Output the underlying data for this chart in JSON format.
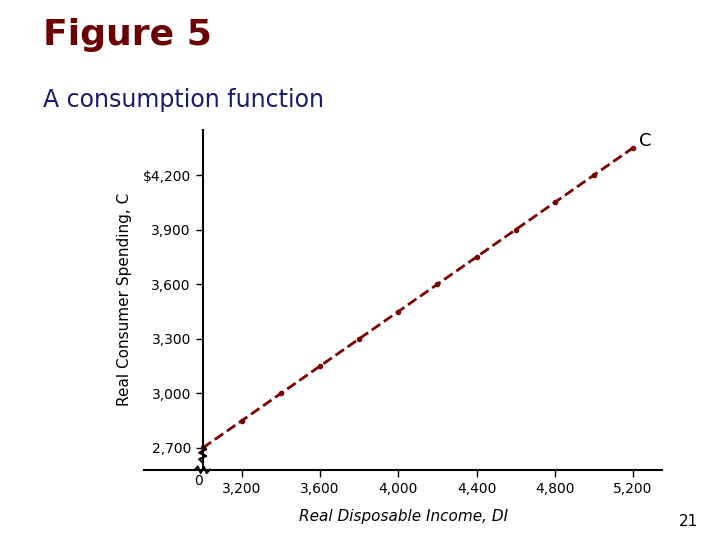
{
  "title": "Figure 5",
  "subtitle": "A consumption function",
  "xlabel": "Real Disposable Income, DI",
  "ylabel": "Real Consumer Spending, C",
  "curve_label": "C",
  "x_data": [
    3000,
    3200,
    3400,
    3600,
    3800,
    4000,
    4200,
    4400,
    4600,
    4800,
    5000,
    5200
  ],
  "y_data": [
    2700,
    2850,
    3000,
    3150,
    3300,
    3450,
    3600,
    3750,
    3900,
    4050,
    4200,
    4350
  ],
  "x_ticks": [
    3200,
    3600,
    4000,
    4400,
    4800,
    5200
  ],
  "y_ticks": [
    2700,
    3000,
    3300,
    3600,
    3900,
    4200
  ],
  "y_tick_labels": [
    "2,700",
    "3,000",
    "3,300",
    "3,600",
    "3,900",
    "$4,200"
  ],
  "x_tick_labels": [
    "3,200",
    "3,600",
    "4,000",
    "4,400",
    "4,800",
    "5,200"
  ],
  "xlim": [
    2700,
    5350
  ],
  "ylim": [
    2580,
    4450
  ],
  "line_color": "#7b0000",
  "dot_color": "#7b0000",
  "bg_color": "#ffffff",
  "title_color": "#6b0000",
  "subtitle_color": "#1a1a6e",
  "teal_color": "#3dbdb0",
  "title_fontsize": 26,
  "subtitle_fontsize": 17,
  "label_fontsize": 11,
  "tick_fontsize": 10
}
